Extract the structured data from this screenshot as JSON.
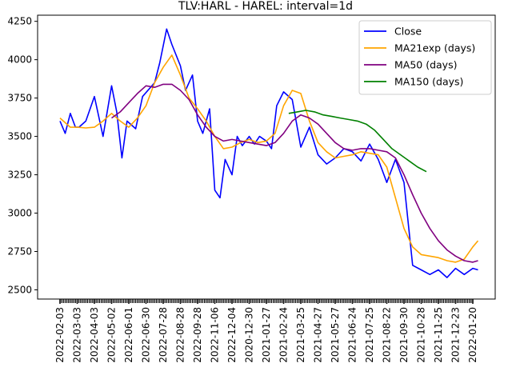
{
  "chart_data": {
    "type": "line",
    "title": "TLV:HARL - HAREL: interval=1d",
    "xlabel": "",
    "ylabel": "",
    "ylim": [
      2440,
      4290
    ],
    "yticks": [
      2500,
      2750,
      3000,
      3250,
      3500,
      3750,
      4000,
      4250
    ],
    "xticks": [
      "2022-02-03",
      "2022-03-03",
      "2022-04-03",
      "2022-05-02",
      "2022-06-01",
      "2022-06-30",
      "2022-07-28",
      "2022-08-28",
      "2022-09-28",
      "2022-11-06",
      "2022-12-04",
      "2020-12-30",
      "2021-01-27",
      "2021-02-24",
      "2021-03-25",
      "2021-04-27",
      "2021-05-27",
      "2021-06-24",
      "2021-07-25",
      "2021-08-22",
      "2021-09-30",
      "2021-10-28",
      "2021-11-25",
      "2021-12-23",
      "2022-01-20"
    ],
    "grid": false,
    "legend_position": "top-right",
    "colors": {
      "close": "#0000ff",
      "ma21": "#ffa500",
      "ma50": "#800080",
      "ma150": "#008000"
    },
    "series": [
      {
        "name": "Close",
        "color": "#0000ff",
        "x": [
          0,
          0.3,
          0.6,
          0.9,
          1.1,
          1.5,
          2,
          2.5,
          3,
          3.3,
          3.6,
          3.9,
          4.4,
          4.8,
          5.5,
          5.8,
          6.2,
          6.5,
          7,
          7.3,
          7.7,
          8,
          8.3,
          8.7,
          9,
          9.3,
          9.6,
          10,
          10.3,
          10.6,
          11,
          11.3,
          11.6,
          12,
          12.3,
          12.6,
          13,
          13.5,
          14,
          14.5,
          15,
          15.5,
          16,
          16.5,
          17,
          17.5,
          18,
          18.5,
          19,
          19.5,
          20,
          20.5,
          21,
          21.5,
          22,
          22.5,
          23,
          23.5,
          24,
          24.3
        ],
        "values": [
          3600,
          3520,
          3650,
          3560,
          3560,
          3600,
          3760,
          3500,
          3830,
          3660,
          3360,
          3600,
          3550,
          3760,
          3850,
          3980,
          4200,
          4100,
          3960,
          3800,
          3900,
          3600,
          3520,
          3680,
          3150,
          3100,
          3350,
          3250,
          3500,
          3440,
          3500,
          3450,
          3500,
          3470,
          3420,
          3700,
          3790,
          3740,
          3430,
          3560,
          3380,
          3320,
          3360,
          3420,
          3400,
          3340,
          3450,
          3350,
          3200,
          3350,
          3200,
          2660,
          2630,
          2600,
          2630,
          2580,
          2640,
          2600,
          2640,
          2630
        ]
      },
      {
        "name": "MA21exp (days)",
        "color": "#ffa500",
        "x": [
          0,
          0.6,
          1,
          1.5,
          2,
          2.5,
          3,
          3.5,
          4,
          4.5,
          5,
          5.5,
          6,
          6.5,
          7,
          7.5,
          8,
          8.5,
          9,
          9.5,
          10,
          10.5,
          11,
          11.5,
          12,
          12.5,
          13,
          13.5,
          14,
          14.5,
          15,
          15.5,
          16,
          16.5,
          17,
          17.5,
          18,
          18.5,
          19,
          19.5,
          20,
          20.5,
          21,
          21.5,
          22,
          22.5,
          23,
          23.5,
          24,
          24.3
        ],
        "values": [
          3620,
          3560,
          3560,
          3555,
          3560,
          3600,
          3650,
          3600,
          3560,
          3620,
          3700,
          3850,
          3950,
          4030,
          3900,
          3750,
          3680,
          3600,
          3500,
          3420,
          3430,
          3460,
          3480,
          3460,
          3470,
          3520,
          3700,
          3800,
          3780,
          3600,
          3460,
          3400,
          3360,
          3370,
          3380,
          3400,
          3390,
          3380,
          3300,
          3100,
          2900,
          2780,
          2730,
          2720,
          2710,
          2690,
          2680,
          2700,
          2780,
          2820
        ]
      },
      {
        "name": "MA50 (days)",
        "color": "#800080",
        "x": [
          3,
          3.5,
          4,
          4.5,
          5,
          5.5,
          6,
          6.5,
          7,
          7.5,
          8,
          8.5,
          9,
          9.5,
          10,
          10.5,
          11,
          11.5,
          12,
          12.5,
          13,
          13.5,
          14,
          14.5,
          15,
          15.5,
          16,
          16.5,
          17,
          17.5,
          18,
          18.5,
          19,
          19.5,
          20,
          20.5,
          21,
          21.5,
          22,
          22.5,
          23,
          23.5,
          24,
          24.3
        ],
        "values": [
          3620,
          3660,
          3720,
          3780,
          3830,
          3820,
          3840,
          3840,
          3800,
          3740,
          3640,
          3560,
          3500,
          3470,
          3480,
          3470,
          3460,
          3450,
          3440,
          3460,
          3520,
          3600,
          3640,
          3620,
          3580,
          3520,
          3460,
          3420,
          3410,
          3420,
          3420,
          3410,
          3400,
          3360,
          3250,
          3120,
          3000,
          2900,
          2820,
          2760,
          2720,
          2690,
          2680,
          2690
        ]
      },
      {
        "name": "MA150 (days)",
        "color": "#008000",
        "x": [
          13.3,
          13.8,
          14.3,
          14.8,
          15.3,
          15.8,
          16.3,
          16.8,
          17.3,
          17.8,
          18.3,
          18.8,
          19.3,
          19.8,
          20.3,
          20.8,
          21.3
        ],
        "values": [
          3650,
          3660,
          3670,
          3660,
          3640,
          3630,
          3620,
          3610,
          3600,
          3580,
          3540,
          3480,
          3420,
          3380,
          3340,
          3300,
          3270
        ]
      }
    ]
  }
}
